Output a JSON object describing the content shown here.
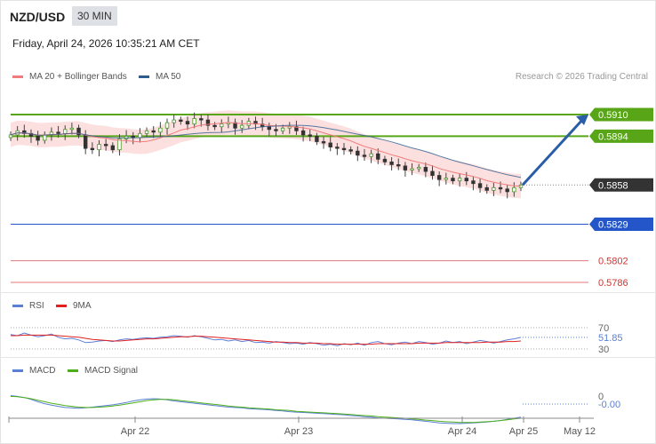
{
  "header": {
    "pair": "NZD/USD",
    "timeframe": "30 MIN",
    "datetime": "Friday, April 24, 2026 10:35:21 AM CET",
    "credit": "Research © 2026 Trading Central"
  },
  "legends": {
    "price": [
      {
        "label": "MA 20 + Bollinger Bands",
        "color": "#f07b7b"
      },
      {
        "label": "MA 50",
        "color": "#2f5c8f"
      }
    ],
    "rsi": [
      {
        "label": "RSI",
        "color": "#5b7fd6"
      },
      {
        "label": "9MA",
        "color": "#e02020"
      }
    ],
    "macd": [
      {
        "label": "MACD",
        "color": "#5b7fd6"
      },
      {
        "label": "MACD Signal",
        "color": "#4caf1a"
      }
    ]
  },
  "chart_data": [
    {
      "type": "candlestick",
      "panel": "price",
      "ylim": [
        0.5775,
        0.5925
      ],
      "last_price": 0.5858,
      "close_approx": [
        0.5895,
        0.5898,
        0.5896,
        0.5894,
        0.5891,
        0.5895,
        0.5897,
        0.5896,
        0.5899,
        0.59,
        0.5895,
        0.5885,
        0.5884,
        0.5888,
        0.5887,
        0.5884,
        0.5892,
        0.5894,
        0.5893,
        0.5896,
        0.5898,
        0.5897,
        0.59,
        0.5904,
        0.5906,
        0.5905,
        0.5903,
        0.5907,
        0.5906,
        0.5902,
        0.5901,
        0.5903,
        0.5904,
        0.59,
        0.5902,
        0.5905,
        0.5903,
        0.5901,
        0.5899,
        0.5898,
        0.59,
        0.5901,
        0.5898,
        0.5895,
        0.5894,
        0.589,
        0.5889,
        0.5886,
        0.5885,
        0.5884,
        0.5883,
        0.588,
        0.5879,
        0.5881,
        0.5877,
        0.5875,
        0.5873,
        0.5872,
        0.5869,
        0.587,
        0.5871,
        0.5868,
        0.5865,
        0.5862,
        0.5863,
        0.5861,
        0.5863,
        0.5861,
        0.5859,
        0.5856,
        0.5854,
        0.5856,
        0.5855,
        0.5853,
        0.5856,
        0.5858
      ],
      "levels": [
        {
          "value": 0.591,
          "label": "0.5910",
          "kind": "resistance",
          "color": "#58a618"
        },
        {
          "value": 0.5894,
          "label": "0.5894",
          "kind": "resistance",
          "color": "#58a618"
        },
        {
          "value": 0.5858,
          "label": "0.5858",
          "kind": "last",
          "color": "#333333"
        },
        {
          "value": 0.5829,
          "label": "0.5829",
          "kind": "support",
          "color": "#2456c9"
        },
        {
          "value": 0.5802,
          "label": "0.5802",
          "kind": "support",
          "color": "#e07a7a"
        },
        {
          "value": 0.5786,
          "label": "0.5786",
          "kind": "support",
          "color": "#e07a7a"
        }
      ],
      "forecast_arrow": {
        "from": 0.5858,
        "to": 0.591,
        "direction": "up"
      }
    },
    {
      "type": "line",
      "panel": "rsi",
      "ylim": [
        20,
        80
      ],
      "ticks": [
        {
          "value": 70,
          "label": "70"
        },
        {
          "value": 30,
          "label": "30"
        }
      ],
      "current": {
        "value": 51.85,
        "label": "51.85"
      },
      "series": [
        {
          "name": "RSI",
          "color": "#5b7fd6",
          "values": [
            57,
            55,
            60,
            56,
            53,
            55,
            58,
            52,
            49,
            50,
            47,
            42,
            43,
            45,
            46,
            44,
            47,
            49,
            48,
            50,
            51,
            50,
            52,
            53,
            55,
            54,
            52,
            55,
            53,
            50,
            47,
            48,
            45,
            47,
            44,
            46,
            42,
            43,
            41,
            44,
            42,
            40,
            41,
            39,
            42,
            40,
            37,
            39,
            36,
            40,
            38,
            41,
            37,
            42,
            44,
            40,
            38,
            41,
            43,
            40,
            44,
            42,
            39,
            41,
            45,
            42,
            44,
            40,
            43,
            46,
            44,
            41,
            44,
            47,
            49,
            51.85
          ]
        },
        {
          "name": "9MA",
          "color": "#e02020",
          "values": [
            55,
            55,
            56,
            56,
            56,
            56,
            56,
            55,
            54,
            53,
            52,
            50,
            48,
            47,
            46,
            45,
            45,
            46,
            47,
            48,
            49,
            49,
            50,
            51,
            52,
            53,
            53,
            54,
            54,
            53,
            52,
            51,
            50,
            49,
            48,
            47,
            46,
            45,
            44,
            43,
            43,
            42,
            42,
            41,
            41,
            41,
            40,
            40,
            39,
            39,
            39,
            39,
            39,
            39,
            40,
            40,
            40,
            40,
            40,
            40,
            41,
            41,
            41,
            41,
            42,
            42,
            42,
            42,
            42,
            42,
            43,
            43,
            43,
            44,
            44,
            45
          ]
        }
      ]
    },
    {
      "type": "line",
      "panel": "macd",
      "ylim": [
        -0.0006,
        0.0003
      ],
      "ticks": [
        {
          "value": 0,
          "label": "0"
        }
      ],
      "current": {
        "value": 0.0,
        "label": "-0.00"
      },
      "series": [
        {
          "name": "MACD",
          "color": "#5b7fd6",
          "values": [
            0.00022,
            0.0002,
            0.00017,
            0.00012,
            6e-05,
            1e-05,
            -3e-05,
            -6e-05,
            -9e-05,
            -0.0001,
            -0.00011,
            -0.0001,
            -8e-05,
            -6e-05,
            -4e-05,
            -2e-05,
            1e-05,
            4e-05,
            8e-05,
            0.00011,
            0.00013,
            0.00014,
            0.00013,
            0.00011,
            8e-05,
            6e-05,
            4e-05,
            2e-05,
            0.0,
            -2e-05,
            -4e-05,
            -6e-05,
            -8e-05,
            -9e-05,
            -0.0001,
            -0.00012,
            -0.00013,
            -0.00014,
            -0.00015,
            -0.00017,
            -0.00018,
            -0.0002,
            -0.00021,
            -0.00022,
            -0.00023,
            -0.00024,
            -0.00025,
            -0.00026,
            -0.00027,
            -0.00028,
            -0.0003,
            -0.00031,
            -0.00033,
            -0.00034,
            -0.00036,
            -0.00037,
            -0.00038,
            -0.00039,
            -0.0004,
            -0.00041,
            -0.00043,
            -0.00045,
            -0.00047,
            -0.00049,
            -0.0005,
            -0.00051,
            -0.00051,
            -0.0005,
            -0.00049,
            -0.00048,
            -0.00047,
            -0.00045,
            -0.00043,
            -0.0004,
            -0.00037,
            -0.00034
          ]
        },
        {
          "name": "MACD Signal",
          "color": "#4caf1a",
          "values": [
            0.0002,
            0.00019,
            0.00017,
            0.00014,
            0.0001,
            6e-05,
            2e-05,
            -1e-05,
            -4e-05,
            -6e-05,
            -8e-05,
            -9e-05,
            -9e-05,
            -8e-05,
            -7e-05,
            -5e-05,
            -3e-05,
            0.0,
            3e-05,
            6e-05,
            9e-05,
            0.00011,
            0.00012,
            0.00012,
            0.00011,
            9e-05,
            7e-05,
            5e-05,
            3e-05,
            1e-05,
            -1e-05,
            -3e-05,
            -5e-05,
            -7e-05,
            -8e-05,
            -0.0001,
            -0.00011,
            -0.00012,
            -0.00013,
            -0.00015,
            -0.00016,
            -0.00017,
            -0.00019,
            -0.0002,
            -0.00021,
            -0.00022,
            -0.00023,
            -0.00024,
            -0.00025,
            -0.00026,
            -0.00027,
            -0.00029,
            -0.0003,
            -0.00031,
            -0.00033,
            -0.00034,
            -0.00035,
            -0.00036,
            -0.00037,
            -0.00039,
            -0.0004,
            -0.00042,
            -0.00043,
            -0.00045,
            -0.00046,
            -0.00047,
            -0.00048,
            -0.00048,
            -0.00048,
            -0.00047,
            -0.00046,
            -0.00045,
            -0.00043,
            -0.00041,
            -0.00039,
            -0.00037
          ]
        }
      ]
    }
  ],
  "x_axis": {
    "labels": [
      "Apr 22",
      "Apr 23",
      "Apr 24",
      "Apr 25",
      "May 12"
    ]
  }
}
